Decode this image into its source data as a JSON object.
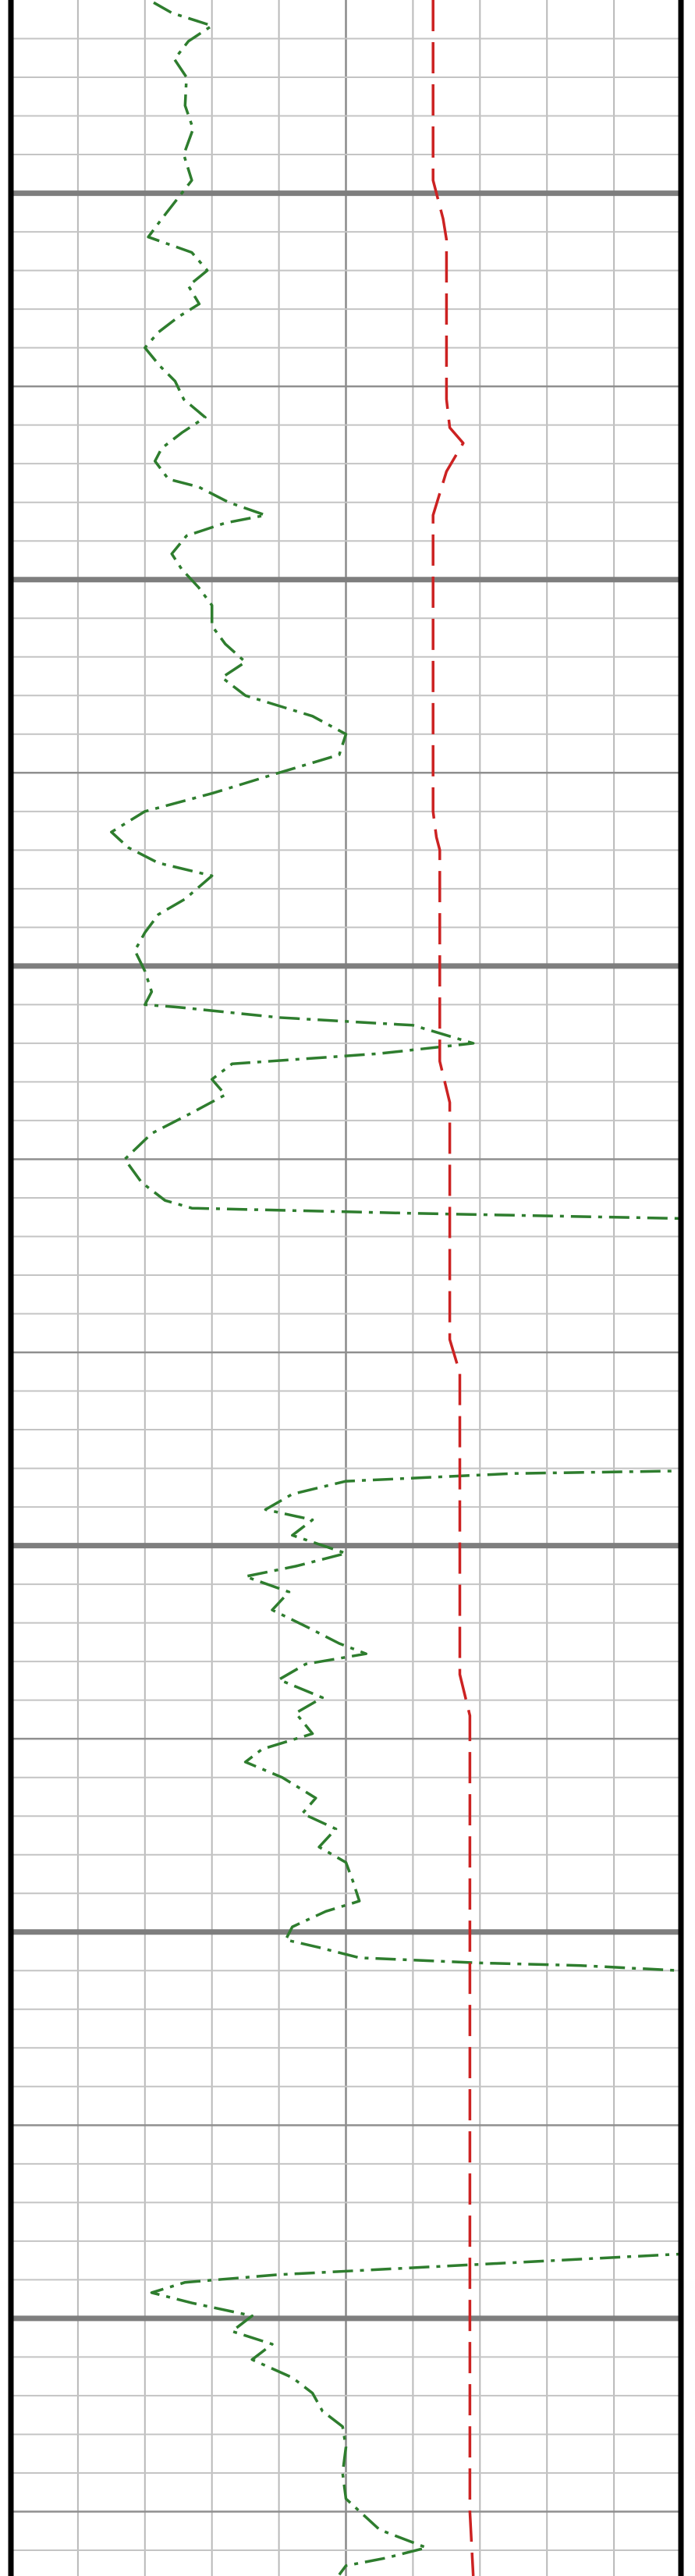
{
  "chart_data": {
    "type": "line",
    "title": "",
    "xlabel": "",
    "ylabel": "",
    "xlim": [
      0,
      10
    ],
    "ylim": [
      0,
      100
    ],
    "grid": true,
    "legend": "none",
    "track": {
      "vertical_divisions": 10,
      "minor_per_major": 5,
      "major_depth_lines": [
        7.5,
        22.5,
        37.5,
        60,
        75,
        90
      ]
    },
    "series": [
      {
        "style": "dash-dot",
        "color": "#2e7d2e",
        "points": [
          [
            2.13,
            0.1
          ],
          [
            2.4,
            0.5
          ],
          [
            3.0,
            1.0
          ],
          [
            2.65,
            1.6
          ],
          [
            2.44,
            2.3
          ],
          [
            2.62,
            3.0
          ],
          [
            2.6,
            4.1
          ],
          [
            2.72,
            5.0
          ],
          [
            2.58,
            6.0
          ],
          [
            2.7,
            7.0
          ],
          [
            2.25,
            8.5
          ],
          [
            2.05,
            9.2
          ],
          [
            2.7,
            9.8
          ],
          [
            2.93,
            10.5
          ],
          [
            2.65,
            11.1
          ],
          [
            2.81,
            11.8
          ],
          [
            2.5,
            12.3
          ],
          [
            2.2,
            12.9
          ],
          [
            2.0,
            13.5
          ],
          [
            2.22,
            14.2
          ],
          [
            2.45,
            14.8
          ],
          [
            2.58,
            15.5
          ],
          [
            2.9,
            16.2
          ],
          [
            2.55,
            16.8
          ],
          [
            2.25,
            17.4
          ],
          [
            2.15,
            17.9
          ],
          [
            2.35,
            18.6
          ],
          [
            2.8,
            18.9
          ],
          [
            3.25,
            19.5
          ],
          [
            3.8,
            20.0
          ],
          [
            3.2,
            20.3
          ],
          [
            2.62,
            20.8
          ],
          [
            2.4,
            21.5
          ],
          [
            2.55,
            22.1
          ],
          [
            2.8,
            22.8
          ],
          [
            3.0,
            23.5
          ],
          [
            3.0,
            24.3
          ],
          [
            3.2,
            25.0
          ],
          [
            3.5,
            25.7
          ],
          [
            3.15,
            26.3
          ],
          [
            3.5,
            27.0
          ],
          [
            4.5,
            27.8
          ],
          [
            5.0,
            28.5
          ],
          [
            4.9,
            29.3
          ],
          [
            4.0,
            30.0
          ],
          [
            3.0,
            30.8
          ],
          [
            2.0,
            31.5
          ],
          [
            1.5,
            32.3
          ],
          [
            1.75,
            32.9
          ],
          [
            2.2,
            33.5
          ],
          [
            3.0,
            34.0
          ],
          [
            2.6,
            34.9
          ],
          [
            2.2,
            35.5
          ],
          [
            2.0,
            36.2
          ],
          [
            1.85,
            36.9
          ],
          [
            2.0,
            37.7
          ],
          [
            2.1,
            38.5
          ],
          [
            2.0,
            39.0
          ],
          [
            2.5,
            39.1
          ],
          [
            4.0,
            39.5
          ],
          [
            6.0,
            39.8
          ],
          [
            6.9,
            40.5
          ],
          [
            5.5,
            40.9
          ],
          [
            3.3,
            41.3
          ],
          [
            3.0,
            41.9
          ],
          [
            3.2,
            42.5
          ],
          [
            2.7,
            43.2
          ],
          [
            2.1,
            44.0
          ],
          [
            1.7,
            45.0
          ],
          [
            1.95,
            45.9
          ],
          [
            2.3,
            46.6
          ],
          [
            2.7,
            46.9
          ],
          [
            6.0,
            47.1
          ],
          [
            10.0,
            47.3
          ],
          [
            10.0,
            48.5
          ],
          [
            9.99,
            57.1
          ],
          [
            7.5,
            57.2
          ],
          [
            5.0,
            57.5
          ],
          [
            4.2,
            58.0
          ],
          [
            3.8,
            58.6
          ],
          [
            4.5,
            59.0
          ],
          [
            4.2,
            59.6
          ],
          [
            5.0,
            60.3
          ],
          [
            4.25,
            60.8
          ],
          [
            3.5,
            61.2
          ],
          [
            4.15,
            61.8
          ],
          [
            3.9,
            62.5
          ],
          [
            4.45,
            63.2
          ],
          [
            4.9,
            63.8
          ],
          [
            5.3,
            64.2
          ],
          [
            4.4,
            64.6
          ],
          [
            4.0,
            65.2
          ],
          [
            4.65,
            65.9
          ],
          [
            4.25,
            66.5
          ],
          [
            4.5,
            67.3
          ],
          [
            3.75,
            67.9
          ],
          [
            3.5,
            68.4
          ],
          [
            4.05,
            69.0
          ],
          [
            4.55,
            69.8
          ],
          [
            4.35,
            70.4
          ],
          [
            4.85,
            71.0
          ],
          [
            4.6,
            71.7
          ],
          [
            5.0,
            72.3
          ],
          [
            5.1,
            73.0
          ],
          [
            5.2,
            73.8
          ],
          [
            4.7,
            74.2
          ],
          [
            4.2,
            74.8
          ],
          [
            4.1,
            75.3
          ],
          [
            4.6,
            75.6
          ],
          [
            5.2,
            76.0
          ],
          [
            7.0,
            76.2
          ],
          [
            8.5,
            76.3
          ],
          [
            10.0,
            76.5
          ],
          [
            10.0,
            87.5
          ],
          [
            7.0,
            87.9
          ],
          [
            4.0,
            88.3
          ],
          [
            2.6,
            88.6
          ],
          [
            2.1,
            89.0
          ],
          [
            2.7,
            89.4
          ],
          [
            3.6,
            89.9
          ],
          [
            3.3,
            90.5
          ],
          [
            3.9,
            91.0
          ],
          [
            3.6,
            91.6
          ],
          [
            4.2,
            92.3
          ],
          [
            4.5,
            92.9
          ],
          [
            4.65,
            93.6
          ],
          [
            4.95,
            94.2
          ],
          [
            5.0,
            95.0
          ],
          [
            4.95,
            96.0
          ],
          [
            5.0,
            97.0
          ],
          [
            5.5,
            98.2
          ],
          [
            6.2,
            98.9
          ],
          [
            5.6,
            99.3
          ],
          [
            5.0,
            99.6
          ],
          [
            4.9,
            99.95
          ]
        ]
      },
      {
        "style": "dashed",
        "color": "#cc2222",
        "points": [
          [
            6.3,
            0.0
          ],
          [
            6.3,
            7.0
          ],
          [
            6.45,
            8.5
          ],
          [
            6.5,
            9.3
          ],
          [
            6.5,
            15.5
          ],
          [
            6.55,
            16.6
          ],
          [
            6.75,
            17.2
          ],
          [
            6.5,
            18.3
          ],
          [
            6.3,
            20.0
          ],
          [
            6.3,
            31.5
          ],
          [
            6.35,
            32.5
          ],
          [
            6.4,
            33.0
          ],
          [
            6.4,
            41.2
          ],
          [
            6.55,
            42.8
          ],
          [
            6.55,
            52.0
          ],
          [
            6.7,
            53.3
          ],
          [
            6.7,
            65.0
          ],
          [
            6.85,
            66.6
          ],
          [
            6.85,
            97.5
          ],
          [
            6.9,
            100.0
          ]
        ]
      }
    ]
  }
}
